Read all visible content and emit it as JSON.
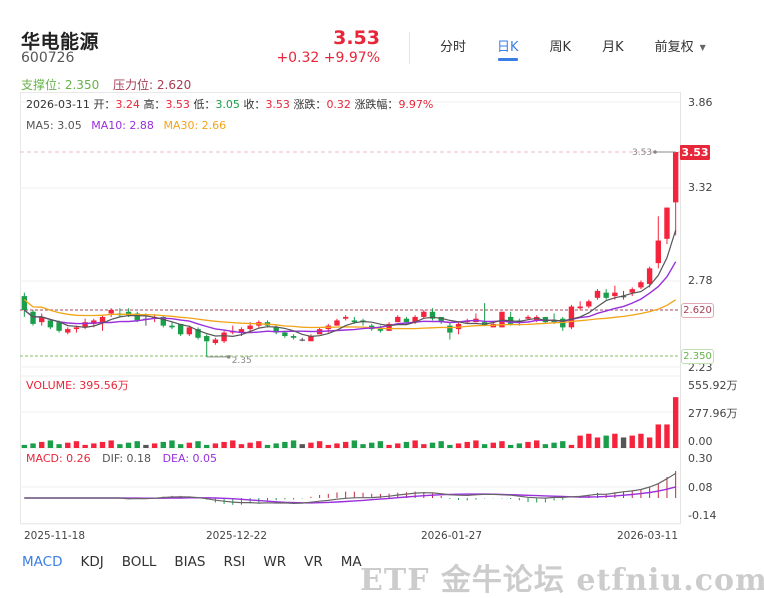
{
  "header": {
    "stock_name": "华电能源",
    "stock_code": "600726",
    "price": "3.53",
    "change": "+0.32 +9.97%",
    "price_color": "#e8263a"
  },
  "period_tabs": [
    {
      "label": "分时",
      "active": false
    },
    {
      "label": "日K",
      "active": true
    },
    {
      "label": "周K",
      "active": false
    },
    {
      "label": "月K",
      "active": false
    },
    {
      "label": "前复权",
      "active": false,
      "dropdown": true
    }
  ],
  "levels": {
    "support_label": "支撑位: 2.350",
    "pressure_label": "压力位: 2.620",
    "support_value": 2.35,
    "pressure_value": 2.62,
    "support_tag": "2.350",
    "pressure_tag": "2.620"
  },
  "info": {
    "date": "2026-03-11",
    "open_label": "开：",
    "open": "3.24",
    "high_label": "高：",
    "high": "3.53",
    "low_label": "低：",
    "low": "3.05",
    "close_label": "收：",
    "close": "3.53",
    "chg_label": "涨跌：",
    "chg": "0.32",
    "pct_label": "涨跌幅：",
    "pct": "9.97%"
  },
  "ma": {
    "ma5": "MA5: 3.05",
    "ma10": "MA10: 2.88",
    "ma30": "MA30: 2.66"
  },
  "price_axis": {
    "ticks": [
      "3.86",
      "3.32",
      "2.78",
      "2.23"
    ],
    "current_tag": "3.53",
    "high_marker": "3.53",
    "low_marker": "2.35"
  },
  "volume": {
    "label": "VOLUME: 395.56万",
    "ticks": [
      "555.92万",
      "277.96万",
      "0.00"
    ]
  },
  "macd": {
    "macd_label": "MACD: 0.26",
    "dif_label": "DIF: 0.18",
    "dea_label": "DEA: 0.05",
    "ticks": [
      "0.30",
      "0.08",
      "-0.14"
    ]
  },
  "date_axis": [
    "2025-11-18",
    "2025-12-22",
    "2026-01-27",
    "2026-03-11"
  ],
  "indicator_tabs": [
    {
      "label": "MACD",
      "active": true
    },
    {
      "label": "KDJ",
      "active": false
    },
    {
      "label": "BOLL",
      "active": false
    },
    {
      "label": "BIAS",
      "active": false
    },
    {
      "label": "RSI",
      "active": false
    },
    {
      "label": "WR",
      "active": false
    },
    {
      "label": "VR",
      "active": false
    },
    {
      "label": "MA",
      "active": false
    }
  ],
  "watermark": "ETF 金牛论坛 etfniu.com",
  "colors": {
    "up": "#f5233c",
    "down": "#1a9e4a",
    "flat": "#555555",
    "ma5": "#555555",
    "ma10": "#9a2fdc",
    "ma30": "#f2a417",
    "accent": "#3a7ee4"
  },
  "chart_data": {
    "type": "candlestick",
    "title": "华电能源 600726 日K",
    "price_range": [
      2.23,
      3.86
    ],
    "candles": [
      [
        2.7,
        2.62,
        2.72,
        2.58
      ],
      [
        2.61,
        2.54,
        2.62,
        2.53
      ],
      [
        2.55,
        2.58,
        2.6,
        2.53
      ],
      [
        2.56,
        2.52,
        2.57,
        2.51
      ],
      [
        2.55,
        2.5,
        2.56,
        2.49
      ],
      [
        2.49,
        2.51,
        2.52,
        2.48
      ],
      [
        2.51,
        2.52,
        2.53,
        2.49
      ],
      [
        2.52,
        2.55,
        2.57,
        2.51
      ],
      [
        2.54,
        2.56,
        2.57,
        2.52
      ],
      [
        2.55,
        2.58,
        2.59,
        2.5
      ],
      [
        2.6,
        2.62,
        2.63,
        2.58
      ],
      [
        2.6,
        2.59,
        2.63,
        2.58
      ],
      [
        2.61,
        2.59,
        2.63,
        2.58
      ],
      [
        2.6,
        2.56,
        2.61,
        2.55
      ],
      [
        2.57,
        2.57,
        2.6,
        2.53
      ],
      [
        2.57,
        2.58,
        2.59,
        2.55
      ],
      [
        2.58,
        2.53,
        2.59,
        2.52
      ],
      [
        2.53,
        2.52,
        2.55,
        2.51
      ],
      [
        2.54,
        2.48,
        2.54,
        2.47
      ],
      [
        2.48,
        2.52,
        2.53,
        2.47
      ],
      [
        2.51,
        2.46,
        2.52,
        2.45
      ],
      [
        2.47,
        2.44,
        2.48,
        2.35
      ],
      [
        2.43,
        2.45,
        2.46,
        2.42
      ],
      [
        2.44,
        2.49,
        2.5,
        2.43
      ],
      [
        2.49,
        2.5,
        2.53,
        2.48
      ],
      [
        2.49,
        2.51,
        2.52,
        2.47
      ],
      [
        2.51,
        2.53,
        2.55,
        2.49
      ],
      [
        2.53,
        2.55,
        2.56,
        2.52
      ],
      [
        2.55,
        2.53,
        2.56,
        2.52
      ],
      [
        2.52,
        2.49,
        2.53,
        2.48
      ],
      [
        2.49,
        2.47,
        2.5,
        2.46
      ],
      [
        2.47,
        2.46,
        2.48,
        2.45
      ],
      [
        2.45,
        2.45,
        2.46,
        2.44
      ],
      [
        2.44,
        2.47,
        2.48,
        2.44
      ],
      [
        2.48,
        2.51,
        2.52,
        2.48
      ],
      [
        2.51,
        2.53,
        2.54,
        2.49
      ],
      [
        2.53,
        2.56,
        2.57,
        2.53
      ],
      [
        2.57,
        2.58,
        2.59,
        2.56
      ],
      [
        2.56,
        2.55,
        2.58,
        2.54
      ],
      [
        2.56,
        2.55,
        2.57,
        2.53
      ],
      [
        2.53,
        2.51,
        2.54,
        2.5
      ],
      [
        2.51,
        2.5,
        2.53,
        2.49
      ],
      [
        2.5,
        2.54,
        2.55,
        2.5
      ],
      [
        2.55,
        2.58,
        2.59,
        2.55
      ],
      [
        2.57,
        2.55,
        2.58,
        2.54
      ],
      [
        2.55,
        2.58,
        2.59,
        2.54
      ],
      [
        2.58,
        2.61,
        2.62,
        2.57
      ],
      [
        2.61,
        2.57,
        2.63,
        2.56
      ],
      [
        2.58,
        2.55,
        2.58,
        2.54
      ],
      [
        2.53,
        2.49,
        2.55,
        2.45
      ],
      [
        2.51,
        2.54,
        2.55,
        2.48
      ],
      [
        2.55,
        2.56,
        2.57,
        2.54
      ],
      [
        2.55,
        2.57,
        2.6,
        2.55
      ],
      [
        2.55,
        2.53,
        2.66,
        2.53
      ],
      [
        2.52,
        2.54,
        2.55,
        2.52
      ],
      [
        2.52,
        2.61,
        2.61,
        2.52
      ],
      [
        2.58,
        2.54,
        2.61,
        2.53
      ],
      [
        2.56,
        2.55,
        2.57,
        2.53
      ],
      [
        2.57,
        2.58,
        2.59,
        2.56
      ],
      [
        2.56,
        2.58,
        2.59,
        2.55
      ],
      [
        2.58,
        2.55,
        2.58,
        2.54
      ],
      [
        2.56,
        2.55,
        2.6,
        2.54
      ],
      [
        2.57,
        2.52,
        2.58,
        2.5
      ],
      [
        2.52,
        2.64,
        2.65,
        2.51
      ],
      [
        2.63,
        2.64,
        2.67,
        2.62
      ],
      [
        2.64,
        2.67,
        2.68,
        2.63
      ],
      [
        2.69,
        2.73,
        2.74,
        2.68
      ],
      [
        2.72,
        2.69,
        2.74,
        2.68
      ],
      [
        2.7,
        2.72,
        2.76,
        2.68
      ],
      [
        2.7,
        2.7,
        2.73,
        2.68
      ],
      [
        2.72,
        2.74,
        2.75,
        2.7
      ],
      [
        2.75,
        2.78,
        2.79,
        2.74
      ],
      [
        2.77,
        2.86,
        2.87,
        2.75
      ],
      [
        2.89,
        3.02,
        3.16,
        2.86
      ],
      [
        3.03,
        3.21,
        3.21,
        3.0
      ],
      [
        3.24,
        3.53,
        3.53,
        3.05
      ]
    ],
    "ma5_last": 3.05,
    "ma10_last": 2.88,
    "ma30_last": 2.66,
    "support": 2.35,
    "resistance": 2.62,
    "volume_max_label": "555.92万",
    "volume_last": "395.56万",
    "macd_range": [
      -0.14,
      0.3
    ]
  }
}
